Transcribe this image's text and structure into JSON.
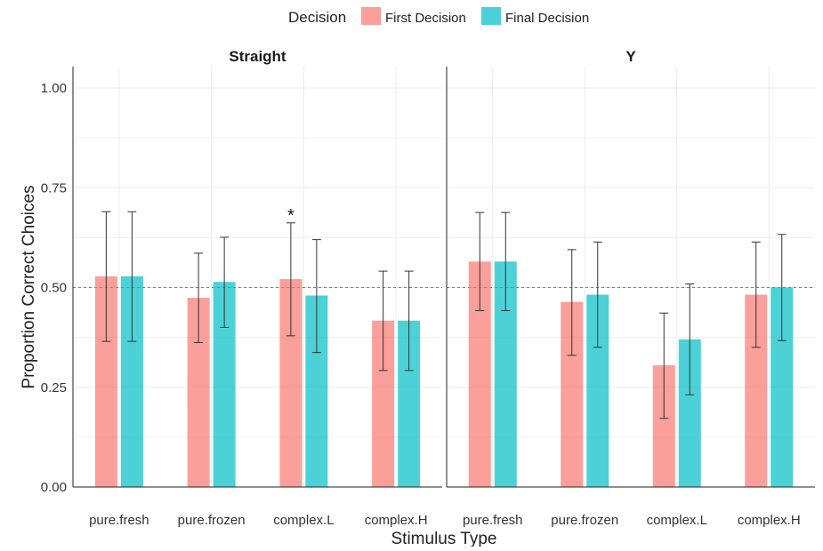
{
  "chart_data": {
    "type": "bar",
    "legend": {
      "title": "Decision",
      "placement": "top",
      "entries": [
        "First Decision",
        "Final Decision"
      ]
    },
    "xlabel": "Stimulus Type",
    "ylabel": "Proportion Correct Choices",
    "ylim": [
      0,
      1.0
    ],
    "yticks": [
      "0.00",
      "0.25",
      "0.50",
      "0.75",
      "1.00"
    ],
    "reference_line": 0.5,
    "categories": [
      "pure.fresh",
      "pure.frozen",
      "complex.L",
      "complex.H"
    ],
    "colors": {
      "First Decision": "#F8766D",
      "Final Decision": "#00BFC4",
      "reference": "#E05555"
    },
    "grid": true,
    "panels": [
      {
        "title": "Straight",
        "series": [
          {
            "name": "First Decision",
            "values": [
              0.528,
              0.474,
              0.521,
              0.417
            ],
            "lower": [
              0.365,
              0.362,
              0.379,
              0.292
            ],
            "upper": [
              0.69,
              0.586,
              0.662,
              0.541
            ]
          },
          {
            "name": "Final Decision",
            "values": [
              0.528,
              0.514,
              0.48,
              0.417
            ],
            "lower": [
              0.365,
              0.4,
              0.337,
              0.292
            ],
            "upper": [
              0.69,
              0.626,
              0.62,
              0.541
            ]
          }
        ],
        "annotations": [
          {
            "category": "complex.L",
            "series": "First Decision",
            "text": "*"
          }
        ]
      },
      {
        "title": "Y",
        "series": [
          {
            "name": "First Decision",
            "values": [
              0.565,
              0.464,
              0.305,
              0.482
            ],
            "lower": [
              0.442,
              0.33,
              0.172,
              0.35
            ],
            "upper": [
              0.688,
              0.595,
              0.436,
              0.614
            ]
          },
          {
            "name": "Final Decision",
            "values": [
              0.565,
              0.482,
              0.37,
              0.5
            ],
            "lower": [
              0.442,
              0.35,
              0.231,
              0.367
            ],
            "upper": [
              0.688,
              0.614,
              0.509,
              0.633
            ]
          }
        ],
        "annotations": []
      }
    ]
  }
}
